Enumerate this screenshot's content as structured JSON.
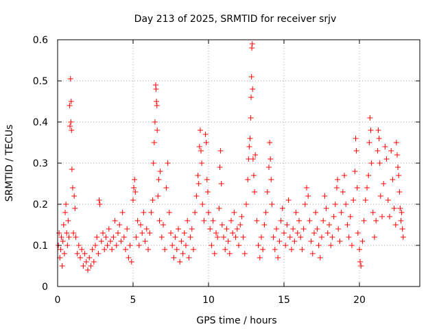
{
  "chart_data": {
    "type": "scatter",
    "title": "Day 213 of 2025, SRMTID for receiver srjv",
    "xlabel": "GPS time / hours",
    "ylabel": "SRMTID / TECUs",
    "xlim": [
      0,
      24
    ],
    "ylim": [
      0,
      0.6
    ],
    "xticks": [
      0,
      5,
      10,
      15,
      20
    ],
    "xtick_labels": [
      "0",
      "5",
      "10",
      "15",
      "20"
    ],
    "yticks": [
      0,
      0.1,
      0.2,
      0.3,
      0.4,
      0.5,
      0.6
    ],
    "ytick_labels": [
      "0",
      "0.1",
      "0.2",
      "0.3",
      "0.4",
      "0.5",
      "0.6"
    ],
    "grid": true,
    "marker": "+",
    "marker_color": "#ff0000",
    "series": [
      {
        "name": "SRMTID",
        "points": [
          [
            0.05,
            0.1
          ],
          [
            0.1,
            0.13
          ],
          [
            0.15,
            0.07
          ],
          [
            0.2,
            0.09
          ],
          [
            0.25,
            0.12
          ],
          [
            0.3,
            0.05
          ],
          [
            0.35,
            0.11
          ],
          [
            0.4,
            0.15
          ],
          [
            0.45,
            0.08
          ],
          [
            0.5,
            0.18
          ],
          [
            0.55,
            0.2
          ],
          [
            0.6,
            0.13
          ],
          [
            0.65,
            0.1
          ],
          [
            0.7,
            0.16
          ],
          [
            0.75,
            0.12
          ],
          [
            0.8,
            0.44
          ],
          [
            0.82,
            0.39
          ],
          [
            0.85,
            0.505
          ],
          [
            0.88,
            0.4
          ],
          [
            0.9,
            0.45
          ],
          [
            0.92,
            0.38
          ],
          [
            0.95,
            0.285
          ],
          [
            1.0,
            0.24
          ],
          [
            1.05,
            0.13
          ],
          [
            1.1,
            0.22
          ],
          [
            1.15,
            0.19
          ],
          [
            1.2,
            0.12
          ],
          [
            1.3,
            0.08
          ],
          [
            1.4,
            0.1
          ],
          [
            1.5,
            0.07
          ],
          [
            1.6,
            0.09
          ],
          [
            1.7,
            0.05
          ],
          [
            1.8,
            0.08
          ],
          [
            1.9,
            0.06
          ],
          [
            2.0,
            0.04
          ],
          [
            2.1,
            0.07
          ],
          [
            2.2,
            0.05
          ],
          [
            2.3,
            0.09
          ],
          [
            2.4,
            0.06
          ],
          [
            2.5,
            0.1
          ],
          [
            2.6,
            0.12
          ],
          [
            2.7,
            0.08
          ],
          [
            2.75,
            0.21
          ],
          [
            2.8,
            0.2
          ],
          [
            2.9,
            0.11
          ],
          [
            3.0,
            0.13
          ],
          [
            3.1,
            0.09
          ],
          [
            3.2,
            0.12
          ],
          [
            3.3,
            0.1
          ],
          [
            3.4,
            0.14
          ],
          [
            3.5,
            0.11
          ],
          [
            3.6,
            0.09
          ],
          [
            3.7,
            0.12
          ],
          [
            3.8,
            0.16
          ],
          [
            3.9,
            0.1
          ],
          [
            4.0,
            0.13
          ],
          [
            4.1,
            0.15
          ],
          [
            4.2,
            0.11
          ],
          [
            4.3,
            0.18
          ],
          [
            4.4,
            0.12
          ],
          [
            4.5,
            0.09
          ],
          [
            4.6,
            0.14
          ],
          [
            4.7,
            0.07
          ],
          [
            4.8,
            0.1
          ],
          [
            4.9,
            0.06
          ],
          [
            5.0,
            0.21
          ],
          [
            5.05,
            0.24
          ],
          [
            5.1,
            0.26
          ],
          [
            5.15,
            0.23
          ],
          [
            5.2,
            0.12
          ],
          [
            5.3,
            0.16
          ],
          [
            5.4,
            0.1
          ],
          [
            5.5,
            0.15
          ],
          [
            5.6,
            0.13
          ],
          [
            5.7,
            0.18
          ],
          [
            5.8,
            0.11
          ],
          [
            5.9,
            0.14
          ],
          [
            6.0,
            0.09
          ],
          [
            6.1,
            0.13
          ],
          [
            6.2,
            0.18
          ],
          [
            6.3,
            0.21
          ],
          [
            6.35,
            0.3
          ],
          [
            6.4,
            0.35
          ],
          [
            6.45,
            0.4
          ],
          [
            6.5,
            0.49
          ],
          [
            6.52,
            0.48
          ],
          [
            6.55,
            0.45
          ],
          [
            6.58,
            0.44
          ],
          [
            6.6,
            0.38
          ],
          [
            6.65,
            0.22
          ],
          [
            6.7,
            0.26
          ],
          [
            6.75,
            0.16
          ],
          [
            6.8,
            0.28
          ],
          [
            6.9,
            0.12
          ],
          [
            7.0,
            0.15
          ],
          [
            7.1,
            0.09
          ],
          [
            7.2,
            0.24
          ],
          [
            7.3,
            0.3
          ],
          [
            7.4,
            0.18
          ],
          [
            7.5,
            0.13
          ],
          [
            7.6,
            0.1
          ],
          [
            7.7,
            0.07
          ],
          [
            7.8,
            0.12
          ],
          [
            7.9,
            0.09
          ],
          [
            8.0,
            0.14
          ],
          [
            8.1,
            0.06
          ],
          [
            8.2,
            0.11
          ],
          [
            8.3,
            0.08
          ],
          [
            8.4,
            0.13
          ],
          [
            8.5,
            0.1
          ],
          [
            8.6,
            0.16
          ],
          [
            8.7,
            0.07
          ],
          [
            8.8,
            0.12
          ],
          [
            8.9,
            0.14
          ],
          [
            9.0,
            0.09
          ],
          [
            9.1,
            0.18
          ],
          [
            9.2,
            0.22
          ],
          [
            9.3,
            0.27
          ],
          [
            9.35,
            0.25
          ],
          [
            9.4,
            0.34
          ],
          [
            9.45,
            0.38
          ],
          [
            9.5,
            0.33
          ],
          [
            9.55,
            0.3
          ],
          [
            9.6,
            0.2
          ],
          [
            9.7,
            0.16
          ],
          [
            9.8,
            0.37
          ],
          [
            9.85,
            0.35
          ],
          [
            9.9,
            0.26
          ],
          [
            9.95,
            0.23
          ],
          [
            10.0,
            0.18
          ],
          [
            10.1,
            0.14
          ],
          [
            10.2,
            0.1
          ],
          [
            10.3,
            0.16
          ],
          [
            10.4,
            0.08
          ],
          [
            10.5,
            0.13
          ],
          [
            10.6,
            0.12
          ],
          [
            10.7,
            0.19
          ],
          [
            10.75,
            0.29
          ],
          [
            10.8,
            0.33
          ],
          [
            10.85,
            0.25
          ],
          [
            10.9,
            0.15
          ],
          [
            11.0,
            0.12
          ],
          [
            11.1,
            0.09
          ],
          [
            11.2,
            0.14
          ],
          [
            11.3,
            0.11
          ],
          [
            11.4,
            0.08
          ],
          [
            11.5,
            0.16
          ],
          [
            11.6,
            0.13
          ],
          [
            11.7,
            0.18
          ],
          [
            11.8,
            0.12
          ],
          [
            11.9,
            0.14
          ],
          [
            12.0,
            0.1
          ],
          [
            12.1,
            0.15
          ],
          [
            12.2,
            0.17
          ],
          [
            12.3,
            0.12
          ],
          [
            12.4,
            0.08
          ],
          [
            12.5,
            0.2
          ],
          [
            12.6,
            0.26
          ],
          [
            12.65,
            0.31
          ],
          [
            12.7,
            0.34
          ],
          [
            12.75,
            0.36
          ],
          [
            12.8,
            0.41
          ],
          [
            12.82,
            0.46
          ],
          [
            12.85,
            0.51
          ],
          [
            12.87,
            0.58
          ],
          [
            12.9,
            0.59
          ],
          [
            12.92,
            0.48
          ],
          [
            12.95,
            0.31
          ],
          [
            13.0,
            0.27
          ],
          [
            13.05,
            0.23
          ],
          [
            13.1,
            0.32
          ],
          [
            13.2,
            0.16
          ],
          [
            13.3,
            0.1
          ],
          [
            13.4,
            0.07
          ],
          [
            13.5,
            0.12
          ],
          [
            13.6,
            0.09
          ],
          [
            13.7,
            0.15
          ],
          [
            13.8,
            0.18
          ],
          [
            13.9,
            0.23
          ],
          [
            14.0,
            0.29
          ],
          [
            14.05,
            0.35
          ],
          [
            14.1,
            0.31
          ],
          [
            14.15,
            0.26
          ],
          [
            14.2,
            0.2
          ],
          [
            14.3,
            0.12
          ],
          [
            14.4,
            0.09
          ],
          [
            14.5,
            0.14
          ],
          [
            14.6,
            0.07
          ],
          [
            14.7,
            0.11
          ],
          [
            14.8,
            0.16
          ],
          [
            14.9,
            0.19
          ],
          [
            15.0,
            0.13
          ],
          [
            15.1,
            0.1
          ],
          [
            15.2,
            0.15
          ],
          [
            15.3,
            0.21
          ],
          [
            15.4,
            0.12
          ],
          [
            15.5,
            0.09
          ],
          [
            15.6,
            0.14
          ],
          [
            15.7,
            0.11
          ],
          [
            15.8,
            0.18
          ],
          [
            15.9,
            0.13
          ],
          [
            16.0,
            0.16
          ],
          [
            16.1,
            0.12
          ],
          [
            16.2,
            0.09
          ],
          [
            16.3,
            0.14
          ],
          [
            16.4,
            0.2
          ],
          [
            16.5,
            0.24
          ],
          [
            16.6,
            0.22
          ],
          [
            16.7,
            0.16
          ],
          [
            16.8,
            0.11
          ],
          [
            16.9,
            0.08
          ],
          [
            17.0,
            0.13
          ],
          [
            17.1,
            0.18
          ],
          [
            17.2,
            0.14
          ],
          [
            17.3,
            0.1
          ],
          [
            17.4,
            0.07
          ],
          [
            17.5,
            0.12
          ],
          [
            17.6,
            0.16
          ],
          [
            17.7,
            0.22
          ],
          [
            17.8,
            0.19
          ],
          [
            17.9,
            0.13
          ],
          [
            18.0,
            0.15
          ],
          [
            18.1,
            0.1
          ],
          [
            18.2,
            0.12
          ],
          [
            18.3,
            0.17
          ],
          [
            18.4,
            0.2
          ],
          [
            18.5,
            0.24
          ],
          [
            18.55,
            0.26
          ],
          [
            18.6,
            0.14
          ],
          [
            18.7,
            0.11
          ],
          [
            18.8,
            0.18
          ],
          [
            18.9,
            0.23
          ],
          [
            19.0,
            0.27
          ],
          [
            19.1,
            0.2
          ],
          [
            19.2,
            0.15
          ],
          [
            19.3,
            0.12
          ],
          [
            19.4,
            0.17
          ],
          [
            19.5,
            0.1
          ],
          [
            19.6,
            0.21
          ],
          [
            19.7,
            0.28
          ],
          [
            19.75,
            0.36
          ],
          [
            19.8,
            0.33
          ],
          [
            19.85,
            0.24
          ],
          [
            19.9,
            0.13
          ],
          [
            20.0,
            0.09
          ],
          [
            20.05,
            0.06
          ],
          [
            20.1,
            0.05
          ],
          [
            20.2,
            0.11
          ],
          [
            20.3,
            0.16
          ],
          [
            20.4,
            0.21
          ],
          [
            20.5,
            0.24
          ],
          [
            20.6,
            0.27
          ],
          [
            20.65,
            0.35
          ],
          [
            20.7,
            0.41
          ],
          [
            20.75,
            0.38
          ],
          [
            20.8,
            0.3
          ],
          [
            20.9,
            0.18
          ],
          [
            21.0,
            0.12
          ],
          [
            21.1,
            0.16
          ],
          [
            21.2,
            0.33
          ],
          [
            21.25,
            0.38
          ],
          [
            21.3,
            0.36
          ],
          [
            21.35,
            0.3
          ],
          [
            21.4,
            0.22
          ],
          [
            21.5,
            0.17
          ],
          [
            21.6,
            0.25
          ],
          [
            21.7,
            0.34
          ],
          [
            21.8,
            0.31
          ],
          [
            21.9,
            0.21
          ],
          [
            22.0,
            0.17
          ],
          [
            22.1,
            0.33
          ],
          [
            22.2,
            0.26
          ],
          [
            22.3,
            0.19
          ],
          [
            22.4,
            0.15
          ],
          [
            22.45,
            0.35
          ],
          [
            22.5,
            0.32
          ],
          [
            22.55,
            0.29
          ],
          [
            22.6,
            0.27
          ],
          [
            22.65,
            0.23
          ],
          [
            22.7,
            0.19
          ],
          [
            22.75,
            0.16
          ],
          [
            22.8,
            0.18
          ],
          [
            22.85,
            0.14
          ],
          [
            22.9,
            0.12
          ]
        ]
      }
    ]
  }
}
